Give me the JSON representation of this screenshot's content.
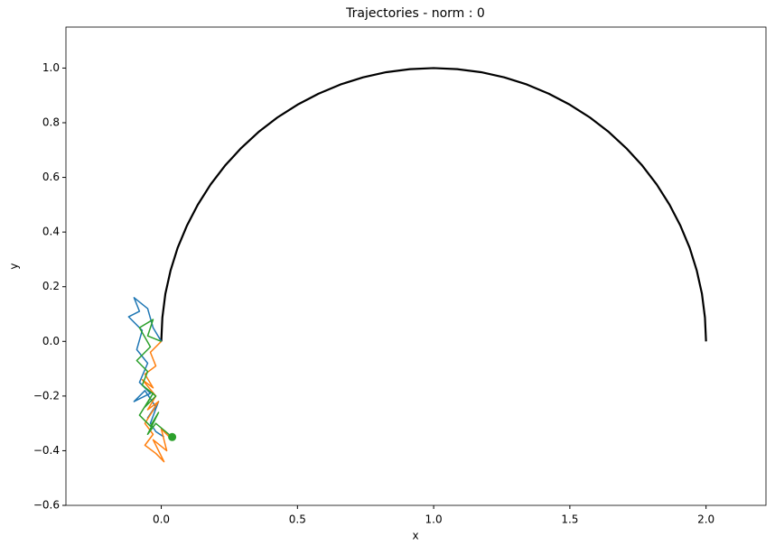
{
  "chart_data": {
    "type": "line",
    "title": "Trajectories - norm : 0",
    "x_label": "x",
    "y_label": "y",
    "xlim": [
      -0.35,
      2.22
    ],
    "ylim": [
      -0.6,
      1.15
    ],
    "xticks": [
      {
        "value": 0,
        "label": "0.0"
      },
      {
        "value": 0.5,
        "label": "0.5"
      },
      {
        "value": 1,
        "label": "1.0"
      },
      {
        "value": 1.5,
        "label": "1.5"
      },
      {
        "value": 2,
        "label": "2.0"
      }
    ],
    "yticks": [
      {
        "value": -0.6,
        "label": "−0.6"
      },
      {
        "value": -0.4,
        "label": "−0.4"
      },
      {
        "value": -0.2,
        "label": "−0.2"
      },
      {
        "value": 0,
        "label": "0.0"
      },
      {
        "value": 0.2,
        "label": "0.2"
      },
      {
        "value": 0.4,
        "label": "0.4"
      },
      {
        "value": 0.6,
        "label": "0.6"
      },
      {
        "value": 0.8,
        "label": "0.8"
      },
      {
        "value": 1,
        "label": "1.0"
      }
    ],
    "series": [
      {
        "color": "#000000",
        "width": 2.2,
        "x": [
          0,
          0.004,
          0.015,
          0.034,
          0.06,
          0.094,
          0.134,
          0.181,
          0.234,
          0.293,
          0.357,
          0.426,
          0.5,
          0.577,
          0.658,
          0.741,
          0.826,
          0.913,
          1.0,
          1.087,
          1.174,
          1.259,
          1.342,
          1.423,
          1.5,
          1.574,
          1.643,
          1.707,
          1.766,
          1.819,
          1.866,
          1.906,
          1.94,
          1.966,
          1.985,
          1.996,
          2.0
        ],
        "y": [
          0,
          0.087,
          0.174,
          0.259,
          0.342,
          0.423,
          0.5,
          0.574,
          0.643,
          0.707,
          0.766,
          0.819,
          0.866,
          0.906,
          0.94,
          0.966,
          0.985,
          0.996,
          1.0,
          0.996,
          0.985,
          0.966,
          0.94,
          0.906,
          0.866,
          0.819,
          0.766,
          0.707,
          0.643,
          0.574,
          0.5,
          0.423,
          0.342,
          0.259,
          0.174,
          0.087,
          0
        ]
      },
      {
        "color": "#1f77b4",
        "width": 1.5,
        "x": [
          0,
          -0.03,
          -0.05,
          -0.1,
          -0.08,
          -0.12,
          -0.07,
          -0.09,
          -0.05,
          -0.08,
          -0.04,
          -0.1,
          -0.06,
          -0.02,
          -0.05,
          -0.01,
          -0.04,
          -0.02,
          0.01
        ],
        "y": [
          0,
          0.05,
          0.12,
          0.16,
          0.11,
          0.09,
          0.04,
          -0.03,
          -0.08,
          -0.15,
          -0.19,
          -0.22,
          -0.18,
          -0.24,
          -0.28,
          -0.22,
          -0.3,
          -0.33,
          -0.35
        ]
      },
      {
        "color": "#ff7f0e",
        "width": 1.5,
        "x": [
          0,
          -0.04,
          -0.02,
          -0.06,
          -0.03,
          -0.07,
          -0.02,
          -0.05,
          -0.01,
          -0.06,
          -0.03,
          -0.06,
          -0.02,
          0.01,
          -0.03,
          0.02,
          0.0,
          0.03
        ],
        "y": [
          0,
          -0.04,
          -0.09,
          -0.12,
          -0.17,
          -0.14,
          -0.2,
          -0.25,
          -0.22,
          -0.3,
          -0.34,
          -0.38,
          -0.41,
          -0.44,
          -0.36,
          -0.4,
          -0.32,
          -0.35
        ]
      },
      {
        "color": "#2ca02c",
        "width": 1.5,
        "end_marker": true,
        "x": [
          0,
          -0.05,
          -0.03,
          -0.08,
          -0.04,
          -0.09,
          -0.05,
          -0.07,
          -0.02,
          -0.06,
          -0.03,
          -0.08,
          -0.04,
          -0.01,
          -0.05,
          -0.02,
          0.04
        ],
        "y": [
          0,
          0.02,
          0.08,
          0.05,
          -0.02,
          -0.07,
          -0.11,
          -0.16,
          -0.2,
          -0.24,
          -0.19,
          -0.27,
          -0.31,
          -0.26,
          -0.34,
          -0.3,
          -0.35
        ]
      }
    ]
  }
}
